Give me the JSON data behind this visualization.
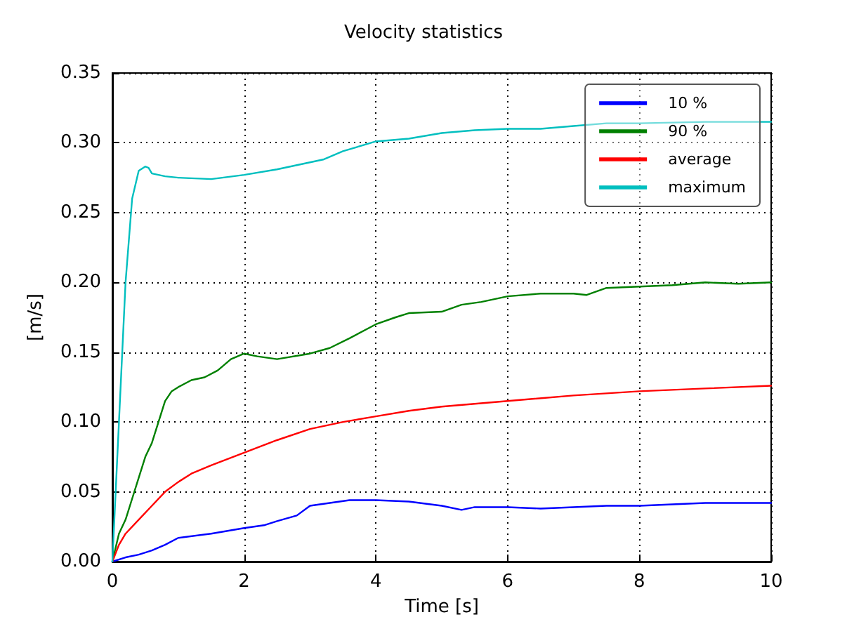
{
  "chart_data": {
    "type": "line",
    "title": "Velocity statistics",
    "xlabel": "Time [s]",
    "ylabel": "[m/s]",
    "xlim": [
      0,
      10
    ],
    "xticks": [
      0,
      2,
      4,
      6,
      8,
      10
    ],
    "ylim": [
      0,
      0.35
    ],
    "yticks": [
      {
        "value": 0,
        "label": "0.00"
      },
      {
        "value": 0.05,
        "label": "0.05"
      },
      {
        "value": 0.1,
        "label": "0.10"
      },
      {
        "value": 0.15,
        "label": "0.15"
      },
      {
        "value": 0.2,
        "label": "0.20"
      },
      {
        "value": 0.25,
        "label": "0.25"
      },
      {
        "value": 0.3,
        "label": "0.30"
      },
      {
        "value": 0.35,
        "label": "0.35"
      }
    ],
    "grid": true,
    "legend": "top right",
    "line_style": "solid",
    "series": [
      {
        "name": "10 %",
        "color": "#0000ff",
        "x": [
          0,
          0.2,
          0.4,
          0.6,
          0.8,
          1.0,
          1.5,
          2,
          2.3,
          2.5,
          2.8,
          3.0,
          3.3,
          3.6,
          4,
          4.5,
          5,
          5.3,
          5.5,
          6,
          6.5,
          7,
          7.5,
          8,
          8.5,
          9,
          10
        ],
        "values": [
          0,
          0.003,
          0.005,
          0.008,
          0.012,
          0.017,
          0.02,
          0.024,
          0.026,
          0.029,
          0.033,
          0.04,
          0.042,
          0.044,
          0.044,
          0.043,
          0.04,
          0.037,
          0.039,
          0.039,
          0.038,
          0.039,
          0.04,
          0.04,
          0.041,
          0.042,
          0.042
        ]
      },
      {
        "name": "90 %",
        "color": "#008000",
        "x": [
          0,
          0.1,
          0.2,
          0.3,
          0.4,
          0.5,
          0.6,
          0.7,
          0.8,
          0.9,
          1.0,
          1.2,
          1.4,
          1.6,
          1.8,
          2,
          2.2,
          2.5,
          3,
          3.3,
          3.6,
          4,
          4.3,
          4.5,
          5,
          5.3,
          5.6,
          6,
          6.5,
          7,
          7.2,
          7.5,
          8,
          8.5,
          9,
          9.5,
          10
        ],
        "values": [
          0,
          0.02,
          0.03,
          0.045,
          0.06,
          0.075,
          0.085,
          0.1,
          0.115,
          0.122,
          0.125,
          0.13,
          0.132,
          0.137,
          0.145,
          0.149,
          0.147,
          0.145,
          0.149,
          0.153,
          0.16,
          0.17,
          0.175,
          0.178,
          0.179,
          0.184,
          0.186,
          0.19,
          0.192,
          0.192,
          0.191,
          0.196,
          0.197,
          0.198,
          0.2,
          0.199,
          0.2
        ]
      },
      {
        "name": "average",
        "color": "#ff0000",
        "x": [
          0,
          0.1,
          0.2,
          0.4,
          0.6,
          0.8,
          1.0,
          1.2,
          1.5,
          2,
          2.5,
          3,
          3.5,
          4,
          4.5,
          5,
          6,
          7,
          8,
          9,
          10
        ],
        "values": [
          0,
          0.012,
          0.02,
          0.03,
          0.04,
          0.05,
          0.057,
          0.063,
          0.069,
          0.078,
          0.087,
          0.095,
          0.1,
          0.104,
          0.108,
          0.111,
          0.115,
          0.119,
          0.122,
          0.124,
          0.126
        ]
      },
      {
        "name": "maximum",
        "color": "#00bfbf",
        "x": [
          0,
          0.1,
          0.2,
          0.3,
          0.4,
          0.5,
          0.55,
          0.6,
          0.8,
          1.0,
          1.5,
          2,
          2.5,
          3,
          3.2,
          3.5,
          4,
          4.5,
          5,
          5.5,
          6,
          6.5,
          7,
          7.5,
          8,
          9,
          10
        ],
        "values": [
          0,
          0.1,
          0.2,
          0.26,
          0.28,
          0.283,
          0.282,
          0.278,
          0.276,
          0.275,
          0.274,
          0.277,
          0.281,
          0.286,
          0.288,
          0.294,
          0.301,
          0.303,
          0.307,
          0.309,
          0.31,
          0.31,
          0.312,
          0.314,
          0.314,
          0.315,
          0.315
        ]
      }
    ]
  }
}
